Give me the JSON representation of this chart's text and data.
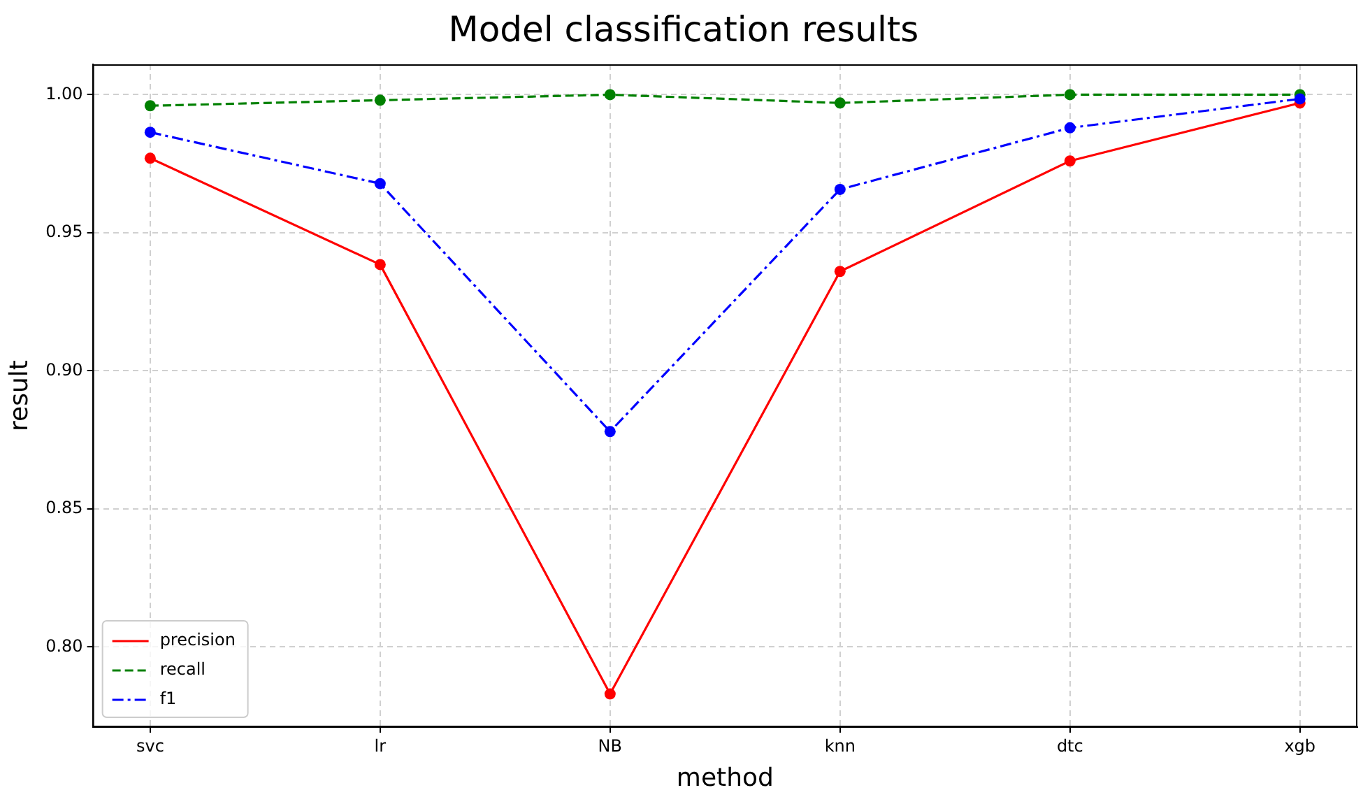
{
  "chart_data": {
    "type": "line",
    "title": "Model classification results",
    "xlabel": "method",
    "ylabel": "result",
    "categories": [
      "svc",
      "lr",
      "NB",
      "knn",
      "dtc",
      "xgb"
    ],
    "series": [
      {
        "name": "precision",
        "color": "#ff0000",
        "line_style": "solid",
        "values": [
          0.977,
          0.9385,
          0.783,
          0.936,
          0.976,
          0.997
        ]
      },
      {
        "name": "recall",
        "color": "#008000",
        "line_style": "dashed",
        "values": [
          0.996,
          0.998,
          1.0,
          0.997,
          1.0,
          1.0
        ]
      },
      {
        "name": "f1",
        "color": "#0000ff",
        "line_style": "dashdot",
        "values": [
          0.9864,
          0.9678,
          0.878,
          0.9657,
          0.988,
          0.9985
        ]
      }
    ],
    "ylim": [
      0.771,
      1.011
    ],
    "yticks": [
      {
        "value": 0.8,
        "label": "0.80"
      },
      {
        "value": 0.85,
        "label": "0.85"
      },
      {
        "value": 0.9,
        "label": "0.90"
      },
      {
        "value": 0.95,
        "label": "0.95"
      },
      {
        "value": 1.0,
        "label": "1.00"
      }
    ],
    "grid": true,
    "legend": "bottom left",
    "marker": "circle"
  }
}
